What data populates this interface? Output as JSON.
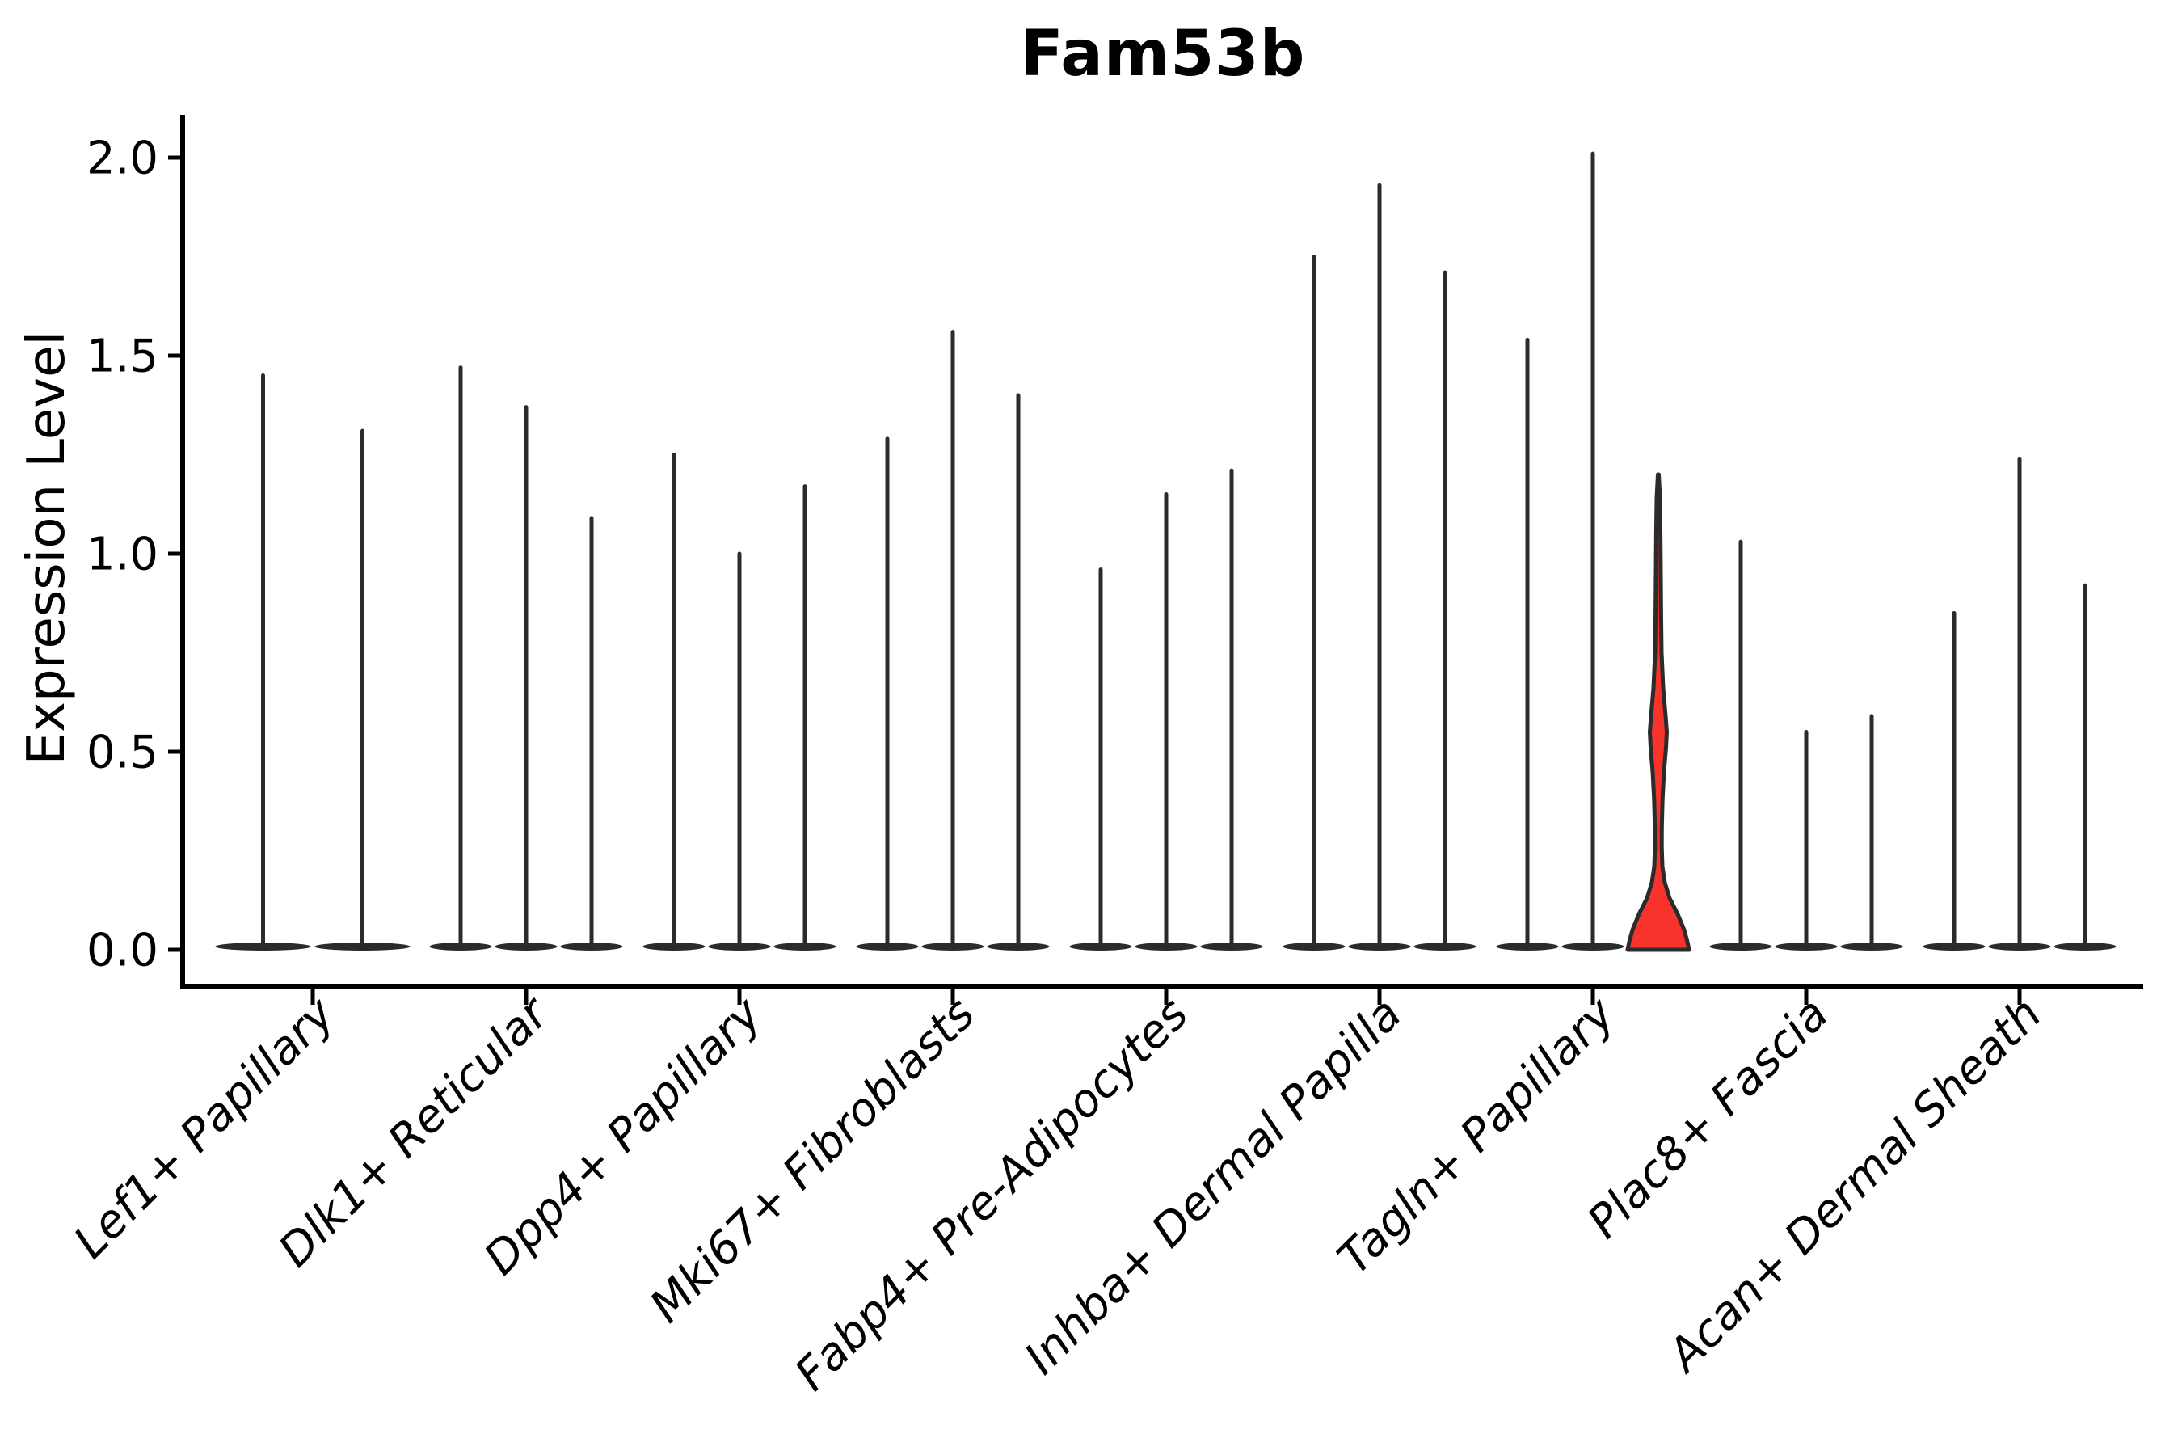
{
  "title": "Fam53b",
  "y_axis": {
    "label": "Expression Level",
    "ticks": [
      "0.0",
      "0.5",
      "1.0",
      "1.5",
      "2.0"
    ],
    "tick_values": [
      0.0,
      0.5,
      1.0,
      1.5,
      2.0
    ]
  },
  "chart_data": {
    "type": "violin",
    "title": "Fam53b",
    "xlabel": "",
    "ylabel": "Expression Level",
    "ylim": [
      0.0,
      2.0
    ],
    "yticks": [
      0.0,
      0.5,
      1.0,
      1.5,
      2.0
    ],
    "ytick_labels": [
      "0.0",
      "0.5",
      "1.0",
      "1.5",
      "2.0"
    ],
    "legend": "none",
    "grid": false,
    "categories": [
      "Lef1+ Papillary",
      "Dlk1+ Reticular",
      "Dpp4+ Papillary",
      "Mki67+ Fibroblasts",
      "Fabp4+ Pre-Adipocytes",
      "Inhba+ Dermal Papilla",
      "Tagln+ Papillary",
      "Plac8+ Fascia",
      "Acan+ Dermal Sheath"
    ],
    "description": "Violin plot of Fam53b expression; most violins collapse to a flat base at 0 with a thin spike to the max expression value. One violin (3rd violin of Tagln+ Papillary) is highlighted in red with visible density mass near 0 and a bulge around 0.55.",
    "groups": [
      {
        "category": "Lef1+ Papillary",
        "violins": [
          {
            "peak": 1.45
          },
          {
            "peak": 1.31
          }
        ]
      },
      {
        "category": "Dlk1+ Reticular",
        "violins": [
          {
            "peak": 1.47
          },
          {
            "peak": 1.37
          },
          {
            "peak": 1.09
          }
        ]
      },
      {
        "category": "Dpp4+ Papillary",
        "violins": [
          {
            "peak": 1.25
          },
          {
            "peak": 1.0
          },
          {
            "peak": 1.17
          }
        ]
      },
      {
        "category": "Mki67+ Fibroblasts",
        "violins": [
          {
            "peak": 1.29
          },
          {
            "peak": 1.56
          },
          {
            "peak": 1.4
          }
        ]
      },
      {
        "category": "Fabp4+ Pre-Adipocytes",
        "violins": [
          {
            "peak": 0.96
          },
          {
            "peak": 1.15
          },
          {
            "peak": 1.21
          }
        ]
      },
      {
        "category": "Inhba+ Dermal Papilla",
        "violins": [
          {
            "peak": 1.75
          },
          {
            "peak": 1.93
          },
          {
            "peak": 1.71
          }
        ]
      },
      {
        "category": "Tagln+ Papillary",
        "violins": [
          {
            "peak": 1.54
          },
          {
            "peak": 2.01
          },
          {
            "peak": 1.2,
            "highlighted": true,
            "profile": [
              [
                1.2,
                0.5
              ],
              [
                1.14,
                2.0
              ],
              [
                1.05,
                2.6
              ],
              [
                0.95,
                3.0
              ],
              [
                0.85,
                3.4
              ],
              [
                0.75,
                4.0
              ],
              [
                0.66,
                6.0
              ],
              [
                0.59,
                9.0
              ],
              [
                0.55,
                10.5
              ],
              [
                0.51,
                9.5
              ],
              [
                0.45,
                7.0
              ],
              [
                0.38,
                5.2
              ],
              [
                0.31,
                4.3
              ],
              [
                0.26,
                4.2
              ],
              [
                0.21,
                5.0
              ],
              [
                0.17,
                8.0
              ],
              [
                0.13,
                14.0
              ],
              [
                0.09,
                24.0
              ],
              [
                0.05,
                32.0
              ],
              [
                0.02,
                36.0
              ],
              [
                0.0,
                38.0
              ]
            ]
          }
        ]
      },
      {
        "category": "Plac8+ Fascia",
        "violins": [
          {
            "peak": 1.03
          },
          {
            "peak": 0.55
          },
          {
            "peak": 0.59
          }
        ]
      },
      {
        "category": "Acan+ Dermal Sheath",
        "violins": [
          {
            "peak": 0.85
          },
          {
            "peak": 1.24
          },
          {
            "peak": 0.92
          }
        ]
      }
    ],
    "style": {
      "violin_color": "#2b2b2b",
      "highlight_fill": "#f8332b",
      "axis_color": "#000000",
      "background": "#ffffff"
    }
  }
}
